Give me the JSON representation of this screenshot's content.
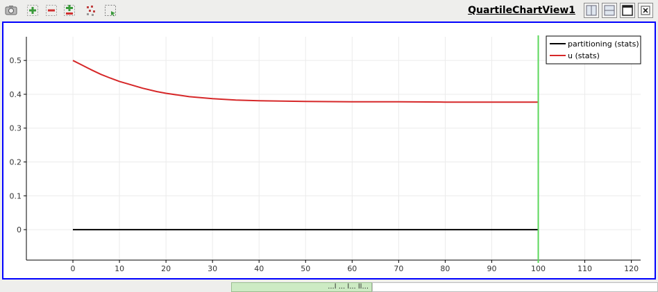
{
  "view": {
    "title": "QuartileChartView1"
  },
  "toolbar": {
    "buttons": [
      {
        "icon": "camera-icon"
      },
      {
        "icon": "zoom-in-icon"
      },
      {
        "icon": "zoom-out-icon"
      },
      {
        "icon": "zoom-to-box-icon"
      },
      {
        "icon": "select-points-icon"
      },
      {
        "icon": "select-box-icon"
      }
    ]
  },
  "window_controls": [
    {
      "icon": "split-horizontal-icon"
    },
    {
      "icon": "split-vertical-icon"
    },
    {
      "icon": "maximize-icon"
    },
    {
      "icon": "close-icon"
    }
  ],
  "colors": {
    "frame_border": "#0000ff",
    "series_partitioning": "#000000",
    "series_u": "#d62728",
    "cursor_line": "#5bd75b"
  },
  "chart_data": {
    "type": "line",
    "xlim": [
      -10,
      122
    ],
    "ylim": [
      -0.09,
      0.57
    ],
    "xticks": [
      0,
      10,
      20,
      30,
      40,
      50,
      60,
      70,
      80,
      90,
      100,
      110,
      120
    ],
    "yticks": [
      0,
      0.1,
      0.2,
      0.3,
      0.4,
      0.5
    ],
    "ytick_labels": [
      "0",
      "0.1",
      "0.2",
      "0.3",
      "0.4",
      "0.5"
    ],
    "grid": true,
    "legend_position": "top-right",
    "cursor_x": 100,
    "series": [
      {
        "name": "partitioning (stats)",
        "x": [
          0,
          100
        ],
        "y": [
          0,
          0
        ]
      },
      {
        "name": "u (stats)",
        "x": [
          0,
          2,
          4,
          6,
          8,
          10,
          12,
          15,
          18,
          20,
          25,
          30,
          35,
          40,
          50,
          60,
          70,
          80,
          90,
          100
        ],
        "y": [
          0.5,
          0.486,
          0.472,
          0.459,
          0.448,
          0.438,
          0.43,
          0.418,
          0.408,
          0.403,
          0.393,
          0.387,
          0.383,
          0.381,
          0.379,
          0.378,
          0.378,
          0.377,
          0.377,
          0.377
        ]
      }
    ]
  },
  "statusbar": {
    "left_text": "...l ... l... ll...",
    "right_text": ""
  }
}
